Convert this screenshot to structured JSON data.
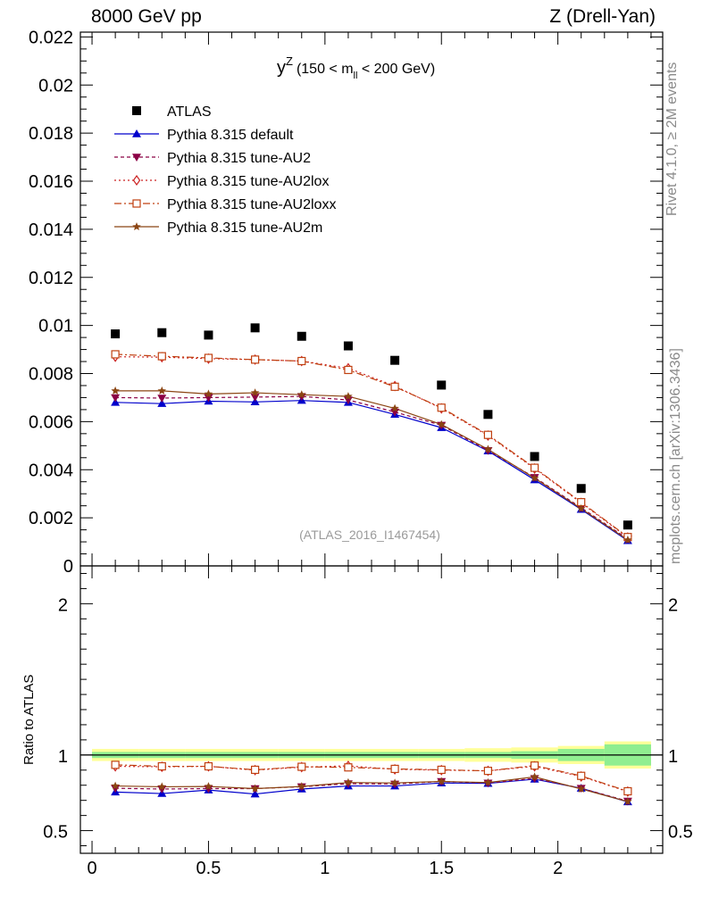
{
  "header": {
    "left": "8000 GeV pp",
    "right": "Z (Drell-Yan)"
  },
  "side": {
    "rivet": "Rivet 4.1.0, ≥ 2M events",
    "mcplots": "mcplots.cern.ch [arXiv:1306.3436]"
  },
  "chart_data": {
    "type": "scatter",
    "title_main": "y",
    "title_sup": "Z",
    "title_range_pre": "(150 < m",
    "title_range_sub": "ll",
    "title_range_post": " < 200 GeV)",
    "analysis_id": "(ATLAS_2016_I1467454)",
    "ratio_ylabel": "Ratio to ATLAS",
    "xlim": [
      -0.05,
      2.45
    ],
    "main_ylim": [
      0,
      0.0222
    ],
    "ratio_ylim": [
      0.35,
      2.25
    ],
    "x_ticks": [
      0,
      0.5,
      1,
      1.5,
      2
    ],
    "x_tick_labels": [
      "0",
      "0.5",
      "1",
      "1.5",
      "2"
    ],
    "main_y_ticks": [
      0,
      0.002,
      0.004,
      0.006,
      0.008,
      0.01,
      0.012,
      0.014,
      0.016,
      0.018,
      0.02,
      0.022
    ],
    "main_y_tick_labels": [
      "0",
      "0.002",
      "0.004",
      "0.006",
      "0.008",
      "0.01",
      "0.012",
      "0.014",
      "0.016",
      "0.018",
      "0.02",
      "0.022"
    ],
    "ratio_y_ticks": [
      0.5,
      1,
      2
    ],
    "ratio_y_tick_labels": [
      "0.5",
      "1",
      "2"
    ],
    "x": [
      0.1,
      0.3,
      0.5,
      0.7,
      0.9,
      1.1,
      1.3,
      1.5,
      1.7,
      1.9,
      2.1,
      2.3
    ],
    "bin_edges": [
      0.0,
      0.2,
      0.4,
      0.6,
      0.8,
      1.0,
      1.2,
      1.4,
      1.6,
      1.8,
      2.0,
      2.2,
      2.4
    ],
    "data": {
      "name": "ATLAS",
      "values": [
        0.00965,
        0.0097,
        0.0096,
        0.0099,
        0.00955,
        0.00915,
        0.00855,
        0.00752,
        0.0063,
        0.00455,
        0.00322,
        0.0017
      ],
      "band_inner": [
        0.02,
        0.02,
        0.02,
        0.02,
        0.02,
        0.02,
        0.02,
        0.02,
        0.02,
        0.025,
        0.04,
        0.07
      ],
      "band_outer": [
        0.04,
        0.04,
        0.04,
        0.04,
        0.04,
        0.04,
        0.04,
        0.04,
        0.045,
        0.05,
        0.06,
        0.09
      ]
    },
    "series": [
      {
        "name": "Pythia 8.315 default",
        "color": "#0000cc",
        "dash": "",
        "marker": "triangle-up",
        "values": [
          0.0068,
          0.00675,
          0.00685,
          0.00682,
          0.00688,
          0.0068,
          0.0063,
          0.00575,
          0.00478,
          0.00358,
          0.00235,
          0.00105
        ],
        "ratio": [
          0.755,
          0.745,
          0.768,
          0.742,
          0.775,
          0.795,
          0.795,
          0.815,
          0.812,
          0.84,
          0.78,
          0.69
        ]
      },
      {
        "name": "Pythia 8.315 tune-AU2",
        "color": "#8b0045",
        "dash": "4,3",
        "marker": "triangle-down",
        "values": [
          0.007,
          0.00698,
          0.007,
          0.00702,
          0.00705,
          0.0069,
          0.0064,
          0.00585,
          0.0048,
          0.00368,
          0.00242,
          0.00112
        ],
        "ratio": [
          0.78,
          0.775,
          0.778,
          0.778,
          0.79,
          0.81,
          0.808,
          0.825,
          0.815,
          0.845,
          0.78,
          0.695
        ]
      },
      {
        "name": "Pythia 8.315 tune-AU2lox",
        "color": "#cc2222",
        "dash": "2,3",
        "marker": "diamond-open",
        "values": [
          0.0087,
          0.00868,
          0.00862,
          0.00858,
          0.00852,
          0.00822,
          0.00748,
          0.00655,
          0.00542,
          0.00405,
          0.00262,
          0.00118
        ],
        "ratio": [
          0.925,
          0.922,
          0.925,
          0.9,
          0.92,
          0.928,
          0.905,
          0.9,
          0.895,
          0.925,
          0.858,
          0.758
        ]
      },
      {
        "name": "Pythia 8.315 tune-AU2loxx",
        "color": "#c04010",
        "dash": "8,3,2,3",
        "marker": "square-open",
        "values": [
          0.0088,
          0.00872,
          0.00865,
          0.00858,
          0.00852,
          0.00815,
          0.00745,
          0.00658,
          0.00545,
          0.00408,
          0.00265,
          0.0012
        ],
        "ratio": [
          0.935,
          0.925,
          0.925,
          0.902,
          0.922,
          0.918,
          0.908,
          0.902,
          0.895,
          0.93,
          0.862,
          0.76
        ]
      },
      {
        "name": "Pythia 8.315 tune-AU2m",
        "color": "#8b4513",
        "dash": "",
        "marker": "star",
        "values": [
          0.00728,
          0.00728,
          0.00715,
          0.0072,
          0.00712,
          0.00705,
          0.00655,
          0.00588,
          0.00485,
          0.00365,
          0.00238,
          0.00108
        ],
        "ratio": [
          0.795,
          0.79,
          0.792,
          0.778,
          0.792,
          0.818,
          0.815,
          0.825,
          0.818,
          0.855,
          0.775,
          0.692
        ]
      }
    ]
  }
}
